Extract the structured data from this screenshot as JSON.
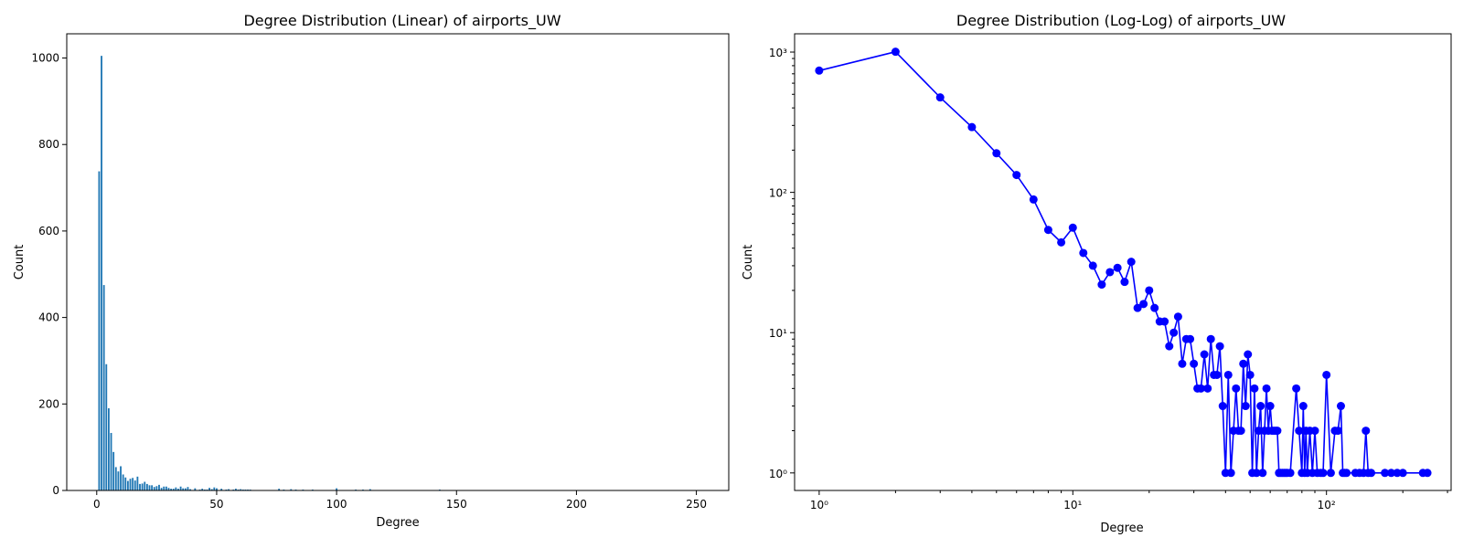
{
  "chart_data": [
    {
      "type": "bar",
      "title": "Degree Distribution (Linear) of airports_UW",
      "xlabel": "Degree",
      "ylabel": "Count",
      "xlim": [
        -12.5,
        263.5
      ],
      "ylim": [
        0,
        1056
      ],
      "xticks": [
        0,
        50,
        100,
        150,
        200,
        250
      ],
      "yticks": [
        0,
        200,
        400,
        600,
        800,
        1000
      ],
      "bar_color": "#1f77b4",
      "grid": false,
      "x": [
        1,
        2,
        3,
        4,
        5,
        6,
        7,
        8,
        9,
        10,
        11,
        12,
        13,
        14,
        15,
        16,
        17,
        18,
        19,
        20,
        21,
        22,
        23,
        24,
        25,
        26,
        27,
        28,
        29,
        30,
        31,
        32,
        33,
        34,
        35,
        36,
        37,
        38,
        39,
        40,
        41,
        42,
        43,
        44,
        45,
        46,
        47,
        48,
        49,
        50,
        51,
        52,
        53,
        54,
        55,
        56,
        57,
        58,
        59,
        60,
        61,
        62,
        63,
        64,
        65,
        66,
        67,
        68,
        69,
        70,
        72,
        76,
        78,
        80,
        81,
        82,
        83,
        84,
        86,
        88,
        90,
        92,
        95,
        97,
        100,
        104,
        108,
        111,
        114,
        116,
        118,
        120,
        130,
        135,
        140,
        143,
        146,
        150,
        170,
        180,
        190,
        200,
        240,
        250
      ],
      "values": [
        738,
        1005,
        475,
        292,
        190,
        133,
        89,
        54,
        44,
        56,
        37,
        30,
        22,
        27,
        29,
        23,
        32,
        15,
        16,
        20,
        15,
        12,
        12,
        8,
        10,
        13,
        6,
        9,
        9,
        6,
        4,
        4,
        7,
        4,
        9,
        5,
        5,
        8,
        3,
        1,
        5,
        1,
        2,
        4,
        2,
        2,
        6,
        3,
        7,
        5,
        1,
        4,
        1,
        2,
        3,
        1,
        2,
        4,
        2,
        3,
        2,
        2,
        2,
        2,
        1,
        1,
        1,
        1,
        1,
        1,
        1,
        4,
        2,
        1,
        3,
        1,
        2,
        1,
        2,
        1,
        2,
        1,
        1,
        1,
        5,
        1,
        2,
        2,
        3,
        1,
        1,
        1,
        1,
        1,
        1,
        2,
        1,
        1,
        1,
        1,
        1,
        1,
        1,
        1
      ]
    },
    {
      "type": "line",
      "scale": "log-log",
      "title": "Degree Distribution (Log-Log) of airports_UW",
      "xlabel": "Degree",
      "ylabel": "Count",
      "xlim": [
        0.8,
        310
      ],
      "ylim": [
        0.75,
        1350
      ],
      "xticks": [
        1,
        10,
        100
      ],
      "yticks": [
        1,
        10,
        100,
        1000
      ],
      "line_color": "#0000ff",
      "marker": "circle",
      "grid": false,
      "x": [
        1,
        2,
        3,
        4,
        5,
        6,
        7,
        8,
        9,
        10,
        11,
        12,
        13,
        14,
        15,
        16,
        17,
        18,
        19,
        20,
        21,
        22,
        23,
        24,
        25,
        26,
        27,
        28,
        29,
        30,
        31,
        32,
        33,
        34,
        35,
        36,
        37,
        38,
        39,
        40,
        41,
        42,
        43,
        44,
        45,
        46,
        47,
        48,
        49,
        50,
        51,
        52,
        53,
        54,
        55,
        56,
        57,
        58,
        59,
        60,
        61,
        62,
        63,
        64,
        65,
        66,
        67,
        68,
        69,
        70,
        72,
        76,
        78,
        80,
        81,
        82,
        83,
        84,
        86,
        88,
        90,
        92,
        95,
        97,
        100,
        104,
        108,
        111,
        114,
        116,
        118,
        120,
        130,
        135,
        140,
        143,
        146,
        150,
        170,
        180,
        190,
        200,
        240,
        250
      ],
      "values": [
        738,
        1005,
        475,
        292,
        190,
        133,
        89,
        54,
        44,
        56,
        37,
        30,
        22,
        27,
        29,
        23,
        32,
        15,
        16,
        20,
        15,
        12,
        12,
        8,
        10,
        13,
        6,
        9,
        9,
        6,
        4,
        4,
        7,
        4,
        9,
        5,
        5,
        8,
        3,
        1,
        5,
        1,
        2,
        4,
        2,
        2,
        6,
        3,
        7,
        5,
        1,
        4,
        1,
        2,
        3,
        1,
        2,
        4,
        2,
        3,
        2,
        2,
        2,
        2,
        1,
        1,
        1,
        1,
        1,
        1,
        1,
        4,
        2,
        1,
        3,
        1,
        2,
        1,
        2,
        1,
        2,
        1,
        1,
        1,
        5,
        1,
        2,
        2,
        3,
        1,
        1,
        1,
        1,
        1,
        1,
        2,
        1,
        1,
        1,
        1,
        1,
        1,
        1,
        1
      ]
    }
  ]
}
